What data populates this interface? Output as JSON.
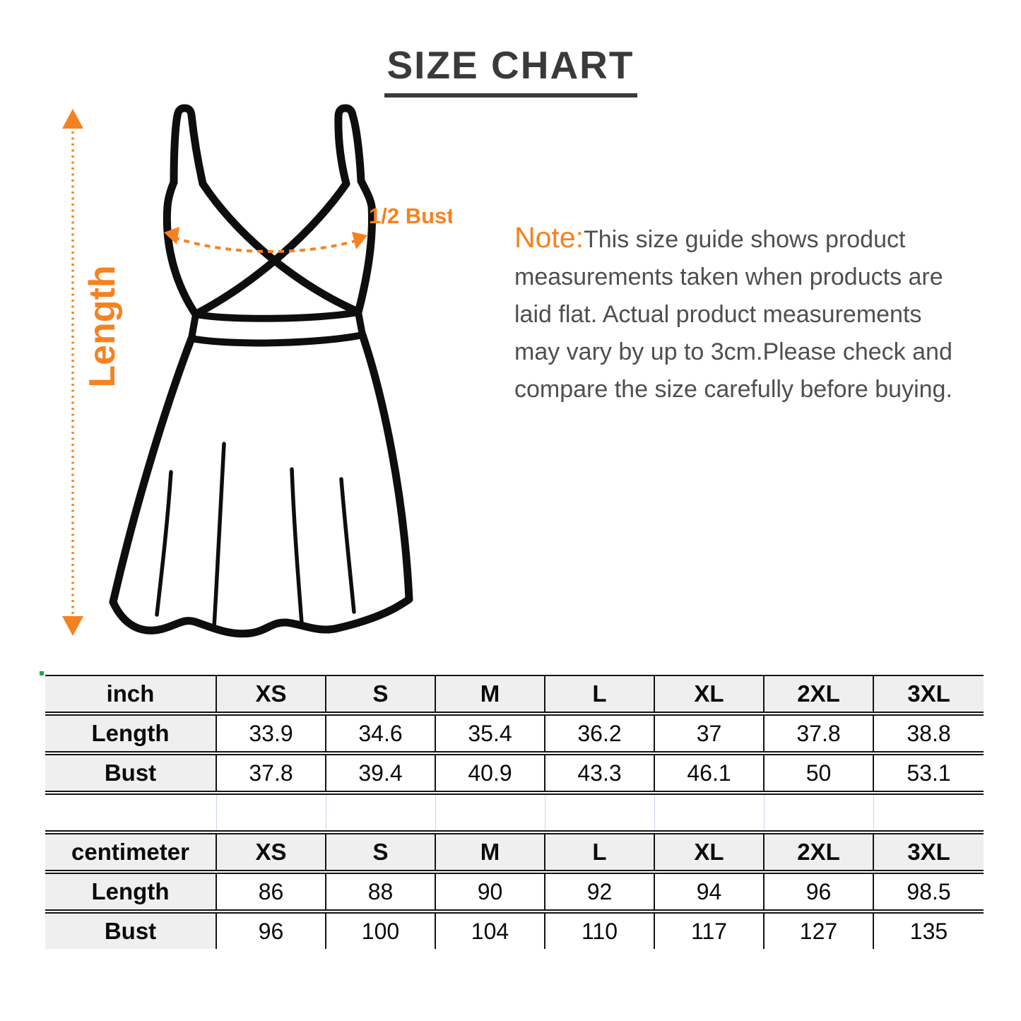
{
  "title": "SIZE CHART",
  "diagram": {
    "length_label": "Length",
    "bust_label": "1/2 Bust"
  },
  "note": {
    "prefix": "Note:",
    "lines": [
      "This size guide shows product",
      "measurements taken when products are",
      "laid flat. Actual product measurements",
      "may vary by up to 3cm.Please check and",
      "compare the size carefully before buying."
    ]
  },
  "chart_data": [
    {
      "type": "table",
      "unit": "inch",
      "columns": [
        "XS",
        "S",
        "M",
        "L",
        "XL",
        "2XL",
        "3XL"
      ],
      "rows": [
        {
          "label": "Length",
          "values": [
            "33.9",
            "34.6",
            "35.4",
            "36.2",
            "37",
            "37.8",
            "38.8"
          ]
        },
        {
          "label": "Bust",
          "values": [
            "37.8",
            "39.4",
            "40.9",
            "43.3",
            "46.1",
            "50",
            "53.1"
          ]
        }
      ]
    },
    {
      "type": "table",
      "unit": "centimeter",
      "columns": [
        "XS",
        "S",
        "M",
        "L",
        "XL",
        "2XL",
        "3XL"
      ],
      "rows": [
        {
          "label": "Length",
          "values": [
            "86",
            "88",
            "90",
            "92",
            "94",
            "96",
            "98.5"
          ]
        },
        {
          "label": "Bust",
          "values": [
            "96",
            "100",
            "104",
            "110",
            "117",
            "127",
            "135"
          ]
        }
      ]
    }
  ],
  "colors": {
    "accent_orange": "#F6821F",
    "note_text": "#4F4F4F",
    "title_text": "#3A3A3A",
    "table_border": "#141414",
    "header_bg": "#EFEFEF",
    "gap_line_blue": "#C9D6EA",
    "dress_outline": "#0E0E0E"
  }
}
